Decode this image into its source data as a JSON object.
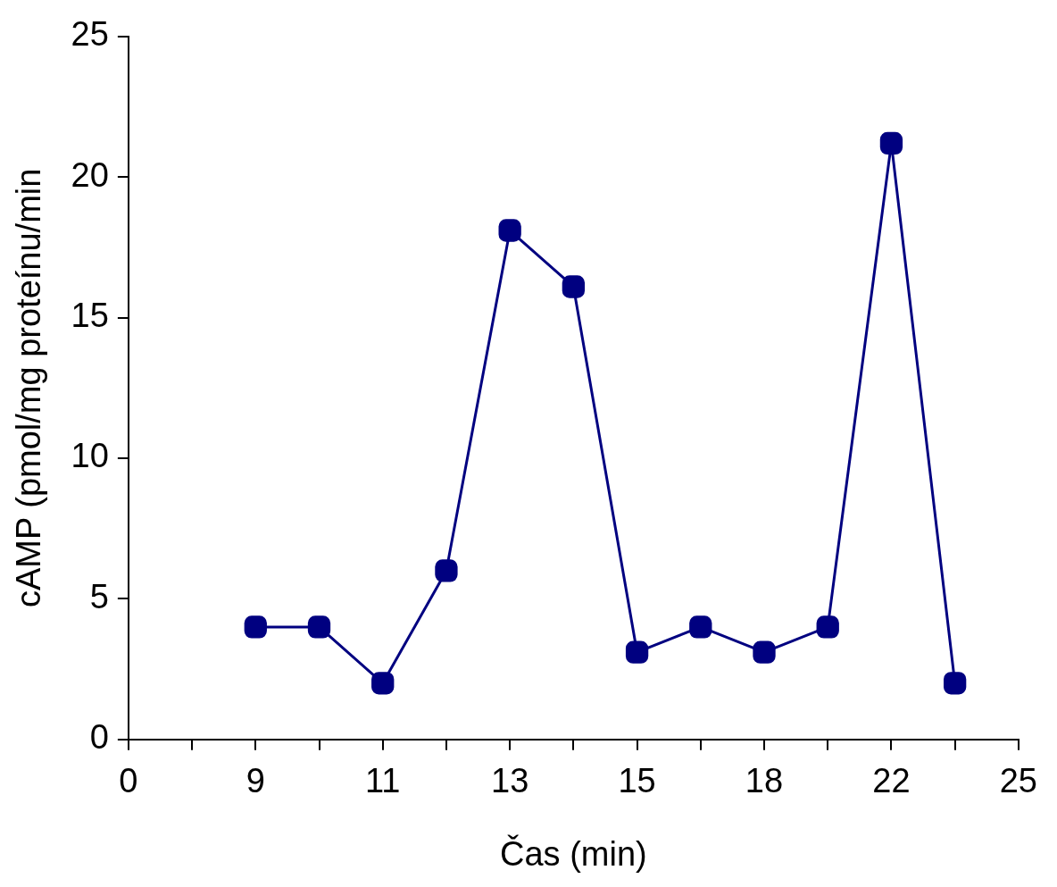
{
  "chart_data": {
    "type": "line",
    "xlabel": "Čas (min)",
    "ylabel": "cAMP (pmol/mg proteínu/min",
    "categories": [
      "0",
      null,
      "9",
      null,
      "11",
      null,
      "13",
      null,
      "15",
      null,
      "18",
      null,
      "22",
      null,
      "25"
    ],
    "series": [
      {
        "color": "#000080",
        "values": [
          null,
          null,
          4,
          4,
          2,
          6,
          18.1,
          16.1,
          3.1,
          4,
          3.1,
          4,
          21.2,
          2,
          null
        ]
      }
    ],
    "ylim": [
      0,
      25
    ],
    "yticks": [
      0,
      5,
      10,
      15,
      20,
      25
    ],
    "grid": false,
    "legend": false,
    "marker": "square",
    "line_style": "solid"
  }
}
